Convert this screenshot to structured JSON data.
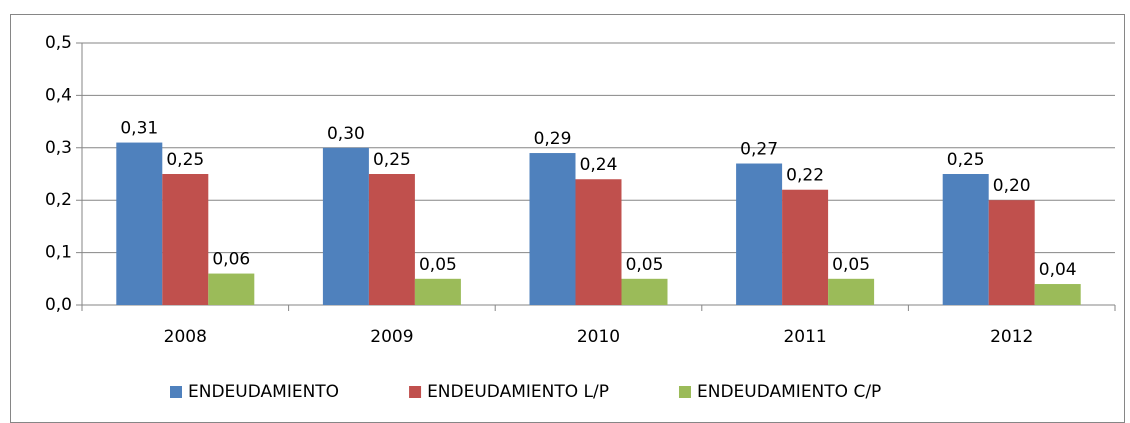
{
  "chart_data": {
    "type": "bar",
    "categories": [
      "2008",
      "2009",
      "2010",
      "2011",
      "2012"
    ],
    "series": [
      {
        "name": "ENDEUDAMIENTO",
        "color": "#4f81bd",
        "values": [
          0.31,
          0.3,
          0.29,
          0.27,
          0.25
        ],
        "value_labels": [
          "0,31",
          "0,30",
          "0,29",
          "0,27",
          "0,25"
        ]
      },
      {
        "name": "ENDEUDAMIENTO L/P",
        "color": "#c0504d",
        "values": [
          0.25,
          0.25,
          0.24,
          0.22,
          0.2
        ],
        "value_labels": [
          "0,25",
          "0,25",
          "0,24",
          "0,22",
          "0,20"
        ]
      },
      {
        "name": "ENDEUDAMIENTO C/P",
        "color": "#9bbb59",
        "values": [
          0.06,
          0.05,
          0.05,
          0.05,
          0.04
        ],
        "value_labels": [
          "0,06",
          "0,05",
          "0,05",
          "0,05",
          "0,04"
        ]
      }
    ],
    "ylim": [
      0,
      0.5
    ],
    "yticks": [
      {
        "value": 0,
        "label": "0,0"
      },
      {
        "value": 0.1,
        "label": "0,1"
      },
      {
        "value": 0.2,
        "label": "0,2"
      },
      {
        "value": 0.3,
        "label": "0,3"
      },
      {
        "value": 0.4,
        "label": "0,4"
      },
      {
        "value": 0.5,
        "label": "0,5"
      }
    ],
    "grid": true,
    "legend": "bottom"
  }
}
